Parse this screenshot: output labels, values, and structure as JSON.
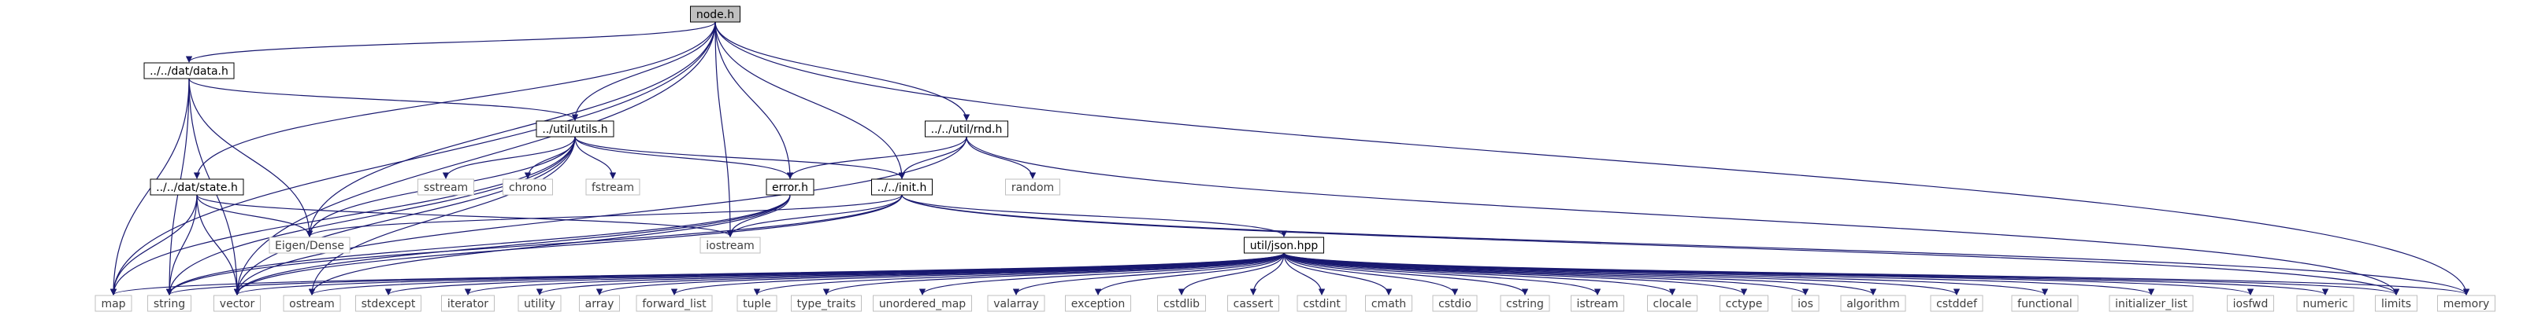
{
  "colors": {
    "edge": "#191970",
    "node_border": "#000000",
    "ext_border": "#bfbfbf",
    "focus_fill": "#bfbfbf",
    "node_fill": "#ffffff"
  },
  "nodes": [
    {
      "id": "node_h",
      "label": "node.h",
      "kind": "focus"
    },
    {
      "id": "dat_data_h",
      "label": "../../dat/data.h",
      "kind": "file"
    },
    {
      "id": "util_utils_h",
      "label": "../util/utils.h",
      "kind": "file"
    },
    {
      "id": "util_rnd_h",
      "label": "../../util/rnd.h",
      "kind": "file"
    },
    {
      "id": "dat_state_h",
      "label": "../../dat/state.h",
      "kind": "file"
    },
    {
      "id": "error_h",
      "label": "error.h",
      "kind": "file"
    },
    {
      "id": "init_h",
      "label": "../../init.h",
      "kind": "file"
    },
    {
      "id": "json_hpp",
      "label": "util/json.hpp",
      "kind": "file"
    },
    {
      "id": "sstream",
      "label": "sstream",
      "kind": "ext"
    },
    {
      "id": "chrono",
      "label": "chrono",
      "kind": "ext"
    },
    {
      "id": "fstream",
      "label": "fstream",
      "kind": "ext"
    },
    {
      "id": "random",
      "label": "random",
      "kind": "ext"
    },
    {
      "id": "eigen_dense",
      "label": "Eigen/Dense",
      "kind": "ext"
    },
    {
      "id": "iostream",
      "label": "iostream",
      "kind": "ext"
    },
    {
      "id": "map",
      "label": "map",
      "kind": "ext"
    },
    {
      "id": "string",
      "label": "string",
      "kind": "ext"
    },
    {
      "id": "vector",
      "label": "vector",
      "kind": "ext"
    },
    {
      "id": "ostream",
      "label": "ostream",
      "kind": "ext"
    },
    {
      "id": "stdexcept",
      "label": "stdexcept",
      "kind": "ext"
    },
    {
      "id": "iterator",
      "label": "iterator",
      "kind": "ext"
    },
    {
      "id": "utility",
      "label": "utility",
      "kind": "ext"
    },
    {
      "id": "array",
      "label": "array",
      "kind": "ext"
    },
    {
      "id": "forward_list",
      "label": "forward_list",
      "kind": "ext"
    },
    {
      "id": "tuple",
      "label": "tuple",
      "kind": "ext"
    },
    {
      "id": "type_traits",
      "label": "type_traits",
      "kind": "ext"
    },
    {
      "id": "unordered_map",
      "label": "unordered_map",
      "kind": "ext"
    },
    {
      "id": "valarray",
      "label": "valarray",
      "kind": "ext"
    },
    {
      "id": "exception",
      "label": "exception",
      "kind": "ext"
    },
    {
      "id": "cstdlib",
      "label": "cstdlib",
      "kind": "ext"
    },
    {
      "id": "cassert",
      "label": "cassert",
      "kind": "ext"
    },
    {
      "id": "cstdint",
      "label": "cstdint",
      "kind": "ext"
    },
    {
      "id": "cmath",
      "label": "cmath",
      "kind": "ext"
    },
    {
      "id": "cstdio",
      "label": "cstdio",
      "kind": "ext"
    },
    {
      "id": "cstring",
      "label": "cstring",
      "kind": "ext"
    },
    {
      "id": "istream",
      "label": "istream",
      "kind": "ext"
    },
    {
      "id": "clocale",
      "label": "clocale",
      "kind": "ext"
    },
    {
      "id": "cctype",
      "label": "cctype",
      "kind": "ext"
    },
    {
      "id": "ios",
      "label": "ios",
      "kind": "ext"
    },
    {
      "id": "algorithm",
      "label": "algorithm",
      "kind": "ext"
    },
    {
      "id": "cstddef",
      "label": "cstddef",
      "kind": "ext"
    },
    {
      "id": "functional",
      "label": "functional",
      "kind": "ext"
    },
    {
      "id": "initializer_list",
      "label": "initializer_list",
      "kind": "ext"
    },
    {
      "id": "iosfwd",
      "label": "iosfwd",
      "kind": "ext"
    },
    {
      "id": "numeric",
      "label": "numeric",
      "kind": "ext"
    },
    {
      "id": "limits",
      "label": "limits",
      "kind": "ext"
    },
    {
      "id": "memory",
      "label": "memory",
      "kind": "ext"
    }
  ],
  "edges": [
    [
      "node_h",
      "dat_data_h"
    ],
    [
      "node_h",
      "util_utils_h"
    ],
    [
      "node_h",
      "util_rnd_h"
    ],
    [
      "node_h",
      "dat_state_h"
    ],
    [
      "node_h",
      "error_h"
    ],
    [
      "node_h",
      "init_h"
    ],
    [
      "node_h",
      "eigen_dense"
    ],
    [
      "node_h",
      "iostream"
    ],
    [
      "node_h",
      "map"
    ],
    [
      "node_h",
      "vector"
    ],
    [
      "node_h",
      "memory"
    ],
    [
      "dat_data_h",
      "util_utils_h"
    ],
    [
      "dat_data_h",
      "eigen_dense"
    ],
    [
      "dat_data_h",
      "map"
    ],
    [
      "dat_data_h",
      "string"
    ],
    [
      "dat_data_h",
      "vector"
    ],
    [
      "util_utils_h",
      "sstream"
    ],
    [
      "util_utils_h",
      "chrono"
    ],
    [
      "util_utils_h",
      "fstream"
    ],
    [
      "util_utils_h",
      "error_h"
    ],
    [
      "util_utils_h",
      "init_h"
    ],
    [
      "util_utils_h",
      "eigen_dense"
    ],
    [
      "util_utils_h",
      "string"
    ],
    [
      "util_utils_h",
      "vector"
    ],
    [
      "util_utils_h",
      "ostream"
    ],
    [
      "util_utils_h",
      "map"
    ],
    [
      "util_rnd_h",
      "random"
    ],
    [
      "util_rnd_h",
      "error_h"
    ],
    [
      "util_rnd_h",
      "init_h"
    ],
    [
      "util_rnd_h",
      "vector"
    ],
    [
      "util_rnd_h",
      "limits"
    ],
    [
      "dat_state_h",
      "eigen_dense"
    ],
    [
      "dat_state_h",
      "iostream"
    ],
    [
      "dat_state_h",
      "map"
    ],
    [
      "dat_state_h",
      "string"
    ],
    [
      "dat_state_h",
      "vector"
    ],
    [
      "error_h",
      "iostream"
    ],
    [
      "error_h",
      "string"
    ],
    [
      "error_h",
      "vector"
    ],
    [
      "error_h",
      "ostream"
    ],
    [
      "init_h",
      "eigen_dense"
    ],
    [
      "init_h",
      "iostream"
    ],
    [
      "init_h",
      "json_hpp"
    ],
    [
      "init_h",
      "string"
    ],
    [
      "init_h",
      "vector"
    ],
    [
      "init_h",
      "limits"
    ],
    [
      "init_h",
      "memory"
    ],
    [
      "json_hpp",
      "map"
    ],
    [
      "json_hpp",
      "string"
    ],
    [
      "json_hpp",
      "vector"
    ],
    [
      "json_hpp",
      "ostream"
    ],
    [
      "json_hpp",
      "stdexcept"
    ],
    [
      "json_hpp",
      "iterator"
    ],
    [
      "json_hpp",
      "utility"
    ],
    [
      "json_hpp",
      "array"
    ],
    [
      "json_hpp",
      "forward_list"
    ],
    [
      "json_hpp",
      "tuple"
    ],
    [
      "json_hpp",
      "type_traits"
    ],
    [
      "json_hpp",
      "unordered_map"
    ],
    [
      "json_hpp",
      "valarray"
    ],
    [
      "json_hpp",
      "exception"
    ],
    [
      "json_hpp",
      "cstdlib"
    ],
    [
      "json_hpp",
      "cassert"
    ],
    [
      "json_hpp",
      "cstdint"
    ],
    [
      "json_hpp",
      "cmath"
    ],
    [
      "json_hpp",
      "cstdio"
    ],
    [
      "json_hpp",
      "cstring"
    ],
    [
      "json_hpp",
      "istream"
    ],
    [
      "json_hpp",
      "clocale"
    ],
    [
      "json_hpp",
      "cctype"
    ],
    [
      "json_hpp",
      "ios"
    ],
    [
      "json_hpp",
      "algorithm"
    ],
    [
      "json_hpp",
      "cstddef"
    ],
    [
      "json_hpp",
      "functional"
    ],
    [
      "json_hpp",
      "initializer_list"
    ],
    [
      "json_hpp",
      "iosfwd"
    ],
    [
      "json_hpp",
      "numeric"
    ],
    [
      "json_hpp",
      "limits"
    ],
    [
      "json_hpp",
      "memory"
    ]
  ]
}
